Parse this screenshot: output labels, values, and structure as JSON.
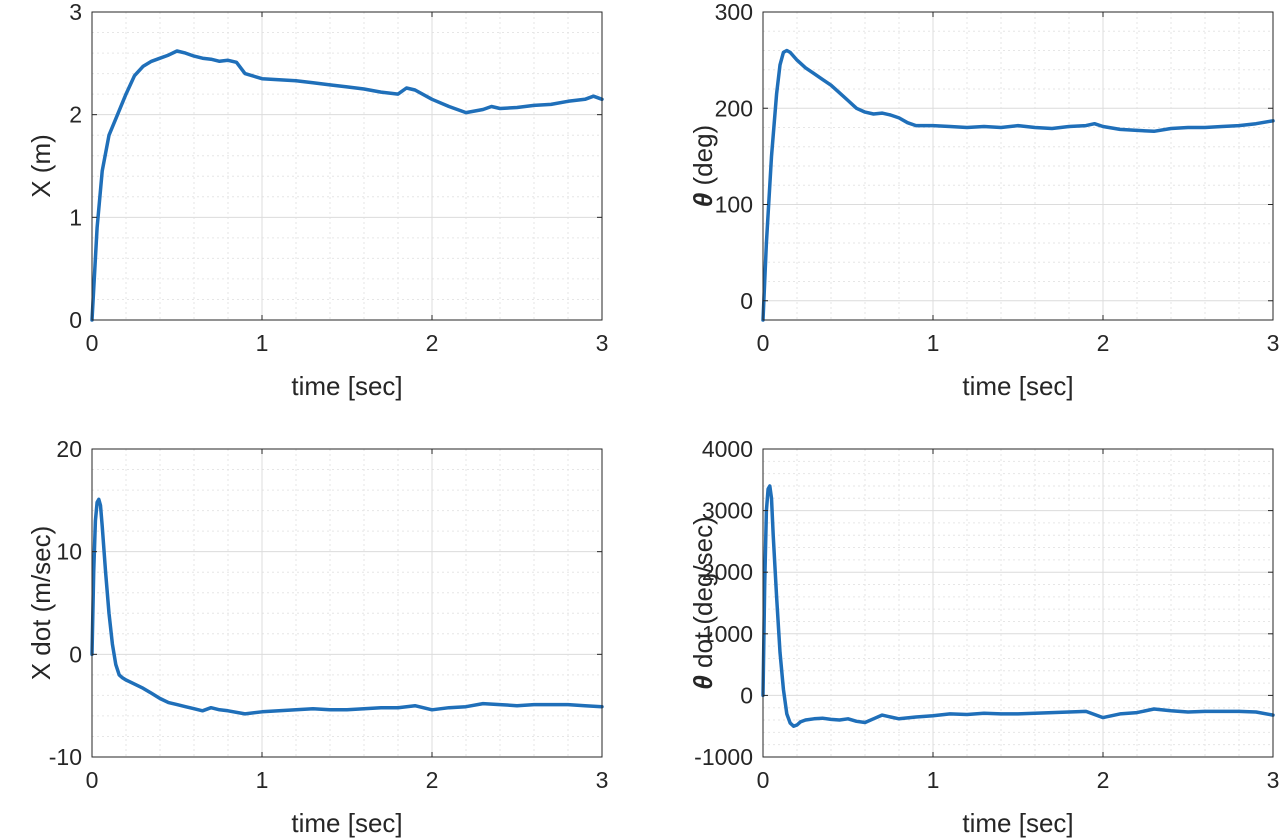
{
  "figure": {
    "line_color": "#1f6fb9",
    "grid_color": "#dcdcdc",
    "minor_grid_color": "#e6e6e6",
    "axes_color": "#262626"
  },
  "chart_data": [
    {
      "type": "line",
      "title": "",
      "xlabel": "time [sec]",
      "ylabel": "X (m)",
      "ylabel_symbol": "",
      "xlim": [
        0,
        3
      ],
      "ylim": [
        0,
        3
      ],
      "xticks": [
        0,
        1,
        2,
        3
      ],
      "xtick_labels": [
        "0",
        "1",
        "2",
        "3"
      ],
      "yticks": [
        0,
        1,
        2,
        3
      ],
      "ytick_labels": [
        "0",
        "1",
        "2",
        "3"
      ],
      "minor": true,
      "series": [
        {
          "name": "X",
          "x": [
            0,
            0.03,
            0.06,
            0.1,
            0.15,
            0.2,
            0.25,
            0.3,
            0.35,
            0.4,
            0.45,
            0.5,
            0.55,
            0.6,
            0.65,
            0.7,
            0.75,
            0.8,
            0.85,
            0.9,
            1.0,
            1.1,
            1.2,
            1.3,
            1.4,
            1.5,
            1.6,
            1.7,
            1.8,
            1.85,
            1.9,
            2.0,
            2.1,
            2.2,
            2.3,
            2.35,
            2.4,
            2.5,
            2.6,
            2.7,
            2.8,
            2.9,
            2.95,
            3.0
          ],
          "y": [
            0,
            0.9,
            1.45,
            1.8,
            2.0,
            2.2,
            2.38,
            2.47,
            2.52,
            2.55,
            2.58,
            2.62,
            2.6,
            2.57,
            2.55,
            2.54,
            2.52,
            2.53,
            2.51,
            2.4,
            2.35,
            2.34,
            2.33,
            2.31,
            2.29,
            2.27,
            2.25,
            2.22,
            2.2,
            2.26,
            2.24,
            2.15,
            2.08,
            2.02,
            2.05,
            2.08,
            2.06,
            2.07,
            2.09,
            2.1,
            2.13,
            2.15,
            2.18,
            2.15
          ]
        }
      ]
    },
    {
      "type": "line",
      "title": "",
      "xlabel": "time [sec]",
      "ylabel": "(deg)",
      "ylabel_symbol": "θ",
      "xlim": [
        0,
        3
      ],
      "ylim": [
        -20,
        300
      ],
      "xticks": [
        0,
        1,
        2,
        3
      ],
      "xtick_labels": [
        "0",
        "1",
        "2",
        "3"
      ],
      "yticks": [
        0,
        100,
        200,
        300
      ],
      "ytick_labels": [
        "0",
        "100",
        "200",
        "300"
      ],
      "minor": true,
      "series": [
        {
          "name": "theta",
          "x": [
            0,
            0.02,
            0.05,
            0.08,
            0.1,
            0.12,
            0.14,
            0.16,
            0.2,
            0.25,
            0.3,
            0.35,
            0.4,
            0.45,
            0.5,
            0.55,
            0.6,
            0.65,
            0.7,
            0.75,
            0.8,
            0.85,
            0.9,
            1.0,
            1.1,
            1.2,
            1.3,
            1.4,
            1.5,
            1.6,
            1.7,
            1.8,
            1.9,
            1.95,
            2.0,
            2.1,
            2.2,
            2.3,
            2.4,
            2.5,
            2.6,
            2.7,
            2.8,
            2.9,
            3.0
          ],
          "y": [
            -20,
            60,
            150,
            215,
            245,
            258,
            260,
            258,
            250,
            242,
            236,
            230,
            224,
            216,
            208,
            200,
            196,
            194,
            195,
            193,
            190,
            185,
            182,
            182,
            181,
            180,
            181,
            180,
            182,
            180,
            179,
            181,
            182,
            184,
            181,
            178,
            177,
            176,
            179,
            180,
            180,
            181,
            182,
            184,
            187
          ]
        }
      ]
    },
    {
      "type": "line",
      "title": "",
      "xlabel": "time [sec]",
      "ylabel": "X dot (m/sec)",
      "ylabel_symbol": "",
      "xlim": [
        0,
        3
      ],
      "ylim": [
        -10,
        20
      ],
      "xticks": [
        0,
        1,
        2,
        3
      ],
      "xtick_labels": [
        "0",
        "1",
        "2",
        "3"
      ],
      "yticks": [
        -10,
        0,
        10,
        20
      ],
      "ytick_labels": [
        "-10",
        "0",
        "10",
        "20"
      ],
      "minor": true,
      "series": [
        {
          "name": "X dot",
          "x": [
            0,
            0.01,
            0.02,
            0.03,
            0.04,
            0.05,
            0.06,
            0.08,
            0.1,
            0.12,
            0.14,
            0.16,
            0.18,
            0.2,
            0.25,
            0.3,
            0.35,
            0.4,
            0.45,
            0.5,
            0.55,
            0.6,
            0.65,
            0.7,
            0.75,
            0.8,
            0.9,
            1.0,
            1.1,
            1.2,
            1.3,
            1.4,
            1.5,
            1.6,
            1.7,
            1.8,
            1.9,
            2.0,
            2.1,
            2.2,
            2.3,
            2.4,
            2.5,
            2.6,
            2.7,
            2.8,
            2.9,
            3.0
          ],
          "y": [
            0,
            8,
            13,
            14.8,
            15.1,
            14.5,
            12.5,
            8,
            4,
            1,
            -1,
            -2,
            -2.3,
            -2.5,
            -2.9,
            -3.3,
            -3.8,
            -4.3,
            -4.7,
            -4.9,
            -5.1,
            -5.3,
            -5.5,
            -5.2,
            -5.4,
            -5.5,
            -5.8,
            -5.6,
            -5.5,
            -5.4,
            -5.3,
            -5.4,
            -5.4,
            -5.3,
            -5.2,
            -5.2,
            -5.0,
            -5.4,
            -5.2,
            -5.1,
            -4.8,
            -4.9,
            -5.0,
            -4.9,
            -4.9,
            -4.9,
            -5.0,
            -5.1
          ]
        }
      ]
    },
    {
      "type": "line",
      "title": "",
      "xlabel": "time [sec]",
      "ylabel": "dot  (deg/sec)",
      "ylabel_symbol": "θ",
      "xlim": [
        0,
        3
      ],
      "ylim": [
        -1000,
        4000
      ],
      "xticks": [
        0,
        1,
        2,
        3
      ],
      "xtick_labels": [
        "0",
        "1",
        "2",
        "3"
      ],
      "yticks": [
        -1000,
        0,
        1000,
        2000,
        3000,
        4000
      ],
      "ytick_labels": [
        "-1000",
        "0",
        "1000",
        "2000",
        "3000",
        "4000"
      ],
      "minor": true,
      "series": [
        {
          "name": "theta dot",
          "x": [
            0,
            0.01,
            0.02,
            0.03,
            0.04,
            0.05,
            0.06,
            0.08,
            0.1,
            0.12,
            0.14,
            0.16,
            0.18,
            0.2,
            0.22,
            0.25,
            0.3,
            0.35,
            0.4,
            0.45,
            0.5,
            0.55,
            0.6,
            0.65,
            0.7,
            0.75,
            0.8,
            0.9,
            1.0,
            1.1,
            1.2,
            1.3,
            1.4,
            1.5,
            1.6,
            1.7,
            1.8,
            1.9,
            2.0,
            2.1,
            2.2,
            2.3,
            2.4,
            2.5,
            2.6,
            2.7,
            2.8,
            2.9,
            3.0
          ],
          "y": [
            0,
            1800,
            3000,
            3350,
            3400,
            3200,
            2600,
            1600,
            700,
            100,
            -300,
            -450,
            -500,
            -480,
            -430,
            -400,
            -380,
            -370,
            -390,
            -400,
            -380,
            -420,
            -440,
            -380,
            -320,
            -350,
            -380,
            -350,
            -330,
            -300,
            -310,
            -290,
            -300,
            -300,
            -290,
            -280,
            -270,
            -260,
            -360,
            -300,
            -280,
            -220,
            -250,
            -270,
            -260,
            -260,
            -260,
            -270,
            -320
          ]
        }
      ]
    }
  ]
}
